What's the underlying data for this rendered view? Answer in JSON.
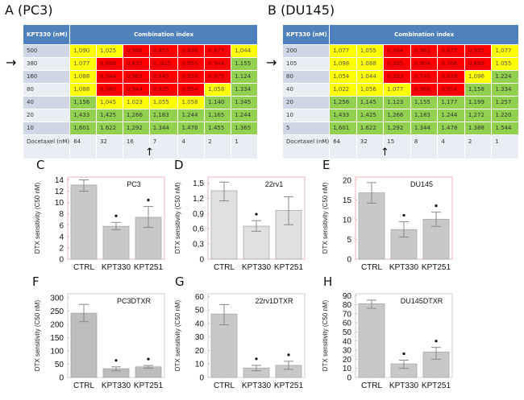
{
  "panels": {
    "A": {
      "label": "A (PC3)"
    },
    "B": {
      "label": "B (DU145)"
    },
    "C": {
      "label": "C"
    },
    "D": {
      "label": "D"
    },
    "E": {
      "label": "E"
    },
    "F": {
      "label": "F"
    },
    "G": {
      "label": "G"
    },
    "H": {
      "label": "H"
    }
  },
  "tables": {
    "A": {
      "row_header": "KPT330 (nM)",
      "col_header": "Combination index",
      "footer_label": "Docetaxel (nM)",
      "columns": [
        "64",
        "32",
        "16",
        "7",
        "4",
        "2",
        "1"
      ],
      "rows": [
        {
          "label": "500",
          "values": [
            "1,090",
            "1,025",
            "0.968",
            "0.855",
            "0.836",
            "0.877",
            "1,044"
          ],
          "colors": [
            "y",
            "y",
            "r",
            "r",
            "r",
            "r",
            "y"
          ]
        },
        {
          "label": "380",
          "values": [
            "1.077",
            "0.866",
            "0.832",
            "0,.925",
            "0.955",
            "0.944",
            "1.155"
          ],
          "colors": [
            "y",
            "r",
            "r",
            "r",
            "r",
            "r",
            "g"
          ]
        },
        {
          "label": "160",
          "values": [
            "1.088",
            "0,944",
            "0.962",
            "0.945",
            "0.928",
            "0.975",
            "1.124"
          ],
          "colors": [
            "y",
            "r",
            "r",
            "r",
            "r",
            "r",
            "g"
          ]
        },
        {
          "label": "80",
          "values": [
            "1,088",
            "0.980",
            "0.944",
            "0.935",
            "0.954",
            "1,058",
            "1.334"
          ],
          "colors": [
            "y",
            "r",
            "r",
            "r",
            "r",
            "y",
            "g"
          ]
        },
        {
          "label": "40",
          "values": [
            "1,156",
            "1,045",
            "1.023",
            "1,055",
            "1.058",
            "1.140",
            "1.345"
          ],
          "colors": [
            "g",
            "y",
            "y",
            "y",
            "y",
            "g",
            "g"
          ]
        },
        {
          "label": "20",
          "values": [
            "1,433",
            "1,425",
            "1,266",
            "1,183",
            "1.244",
            "1,165",
            "1.244"
          ],
          "colors": [
            "g",
            "g",
            "g",
            "g",
            "g",
            "g",
            "g"
          ]
        },
        {
          "label": "10",
          "values": [
            "1,601",
            "1.622",
            "1,292",
            "1.344",
            "1.478",
            "1.455",
            "1.365"
          ],
          "colors": [
            "g",
            "g",
            "g",
            "g",
            "g",
            "g",
            "g"
          ]
        }
      ],
      "highlight_row": "380",
      "highlight_column": "7"
    },
    "B": {
      "row_header": "KPT330 (nM)",
      "col_header": "Combination index",
      "footer_label": "Docetaxel (nM)",
      "columns": [
        "64",
        "32",
        "15",
        "8",
        "4",
        "2",
        "1"
      ],
      "rows": [
        {
          "label": "200",
          "values": [
            "1,077",
            "1,055",
            "0,844",
            "0.983",
            "0.877",
            "0.955",
            "1,077"
          ],
          "colors": [
            "y",
            "y",
            "r",
            "r",
            "r",
            "r",
            "y"
          ]
        },
        {
          "label": "105",
          "values": [
            "1,098",
            "1.088",
            "0.935",
            "0.804",
            "0.766",
            "0.889",
            "1.055"
          ],
          "colors": [
            "y",
            "y",
            "r",
            "r",
            "r",
            "r",
            "y"
          ]
        },
        {
          "label": "80",
          "values": [
            "1,054",
            "1.044",
            "0,933",
            "0.745",
            "0.828",
            "1,096",
            "1.224"
          ],
          "colors": [
            "y",
            "y",
            "r",
            "r",
            "r",
            "y",
            "g"
          ]
        },
        {
          "label": "40",
          "values": [
            "1,022",
            "1,056",
            "1.077",
            "0.988",
            "0.954",
            "1,158",
            "1.334"
          ],
          "colors": [
            "y",
            "y",
            "y",
            "r",
            "r",
            "g",
            "g"
          ]
        },
        {
          "label": "20",
          "values": [
            "1,256",
            "1,145",
            "1.123",
            "1,155",
            "1,177",
            "1.199",
            "1.257"
          ],
          "colors": [
            "g",
            "g",
            "g",
            "g",
            "g",
            "g",
            "g"
          ]
        },
        {
          "label": "10",
          "values": [
            "1,433",
            "1,425",
            "1,266",
            "1,183",
            "1.244",
            "1,272",
            "1.220"
          ],
          "colors": [
            "g",
            "g",
            "g",
            "g",
            "g",
            "g",
            "g"
          ]
        },
        {
          "label": "5",
          "values": [
            "1,601",
            "1.622",
            "1,292",
            "1.344",
            "1.478",
            "1.388",
            "1.544"
          ],
          "colors": [
            "g",
            "g",
            "g",
            "g",
            "g",
            "g",
            "g"
          ]
        }
      ],
      "highlight_row": "105",
      "highlight_column": "15"
    }
  },
  "colors": {
    "red": "#ff0000",
    "yellow": "#ffff00",
    "green": "#92d050",
    "header": "#4f81bd"
  },
  "chart_data": [
    {
      "id": "C",
      "type": "bar",
      "title": "PC3",
      "ylabel": "DTX sensitivity (C50 nM)",
      "xlabel": "",
      "categories": [
        "CTRL",
        "KPT330",
        "KPT251"
      ],
      "values": [
        13.1,
        5.8,
        7.4
      ],
      "errors_low": [
        12.0,
        5.2,
        5.6
      ],
      "errors_high": [
        14.0,
        6.5,
        9.3
      ],
      "significant": [
        false,
        true,
        true
      ],
      "ylim": [
        0,
        14.5
      ],
      "yticks": [
        "0",
        "2",
        "4",
        "6",
        "8",
        "10",
        "12",
        "14"
      ],
      "ytick_values": [
        0,
        2,
        4,
        6,
        8,
        10,
        12,
        14
      ],
      "bar_color": "#c8c8c8",
      "frame_color": "#e8b4b4"
    },
    {
      "id": "D",
      "type": "bar",
      "title": "22rv1",
      "ylabel": "DTX sensitivity (C50 nM)",
      "xlabel": "",
      "categories": [
        "CTRL",
        "KPT330",
        "KPT251"
      ],
      "values": [
        1.35,
        0.65,
        0.96
      ],
      "errors_low": [
        1.15,
        0.55,
        0.68
      ],
      "errors_high": [
        1.52,
        0.76,
        1.23
      ],
      "significant": [
        false,
        true,
        false
      ],
      "ylim": [
        0,
        1.62
      ],
      "yticks": [
        "0",
        "0,3",
        "0,6",
        "0,9",
        "1,2",
        "1,5"
      ],
      "ytick_values": [
        0,
        0.3,
        0.6,
        0.9,
        1.2,
        1.5
      ],
      "bar_color": "#e0e0e0",
      "frame_color": "#e8b4b4"
    },
    {
      "id": "E",
      "type": "bar",
      "title": "DU145",
      "ylabel": "DTX sensitivity (C50 nM)",
      "xlabel": "",
      "categories": [
        "CTRL",
        "KPT330",
        "KPT251"
      ],
      "values": [
        16.8,
        7.5,
        10.1
      ],
      "errors_low": [
        14.2,
        5.6,
        8.3
      ],
      "errors_high": [
        19.4,
        9.5,
        11.9
      ],
      "significant": [
        false,
        true,
        true
      ],
      "ylim": [
        0,
        20.8
      ],
      "yticks": [
        "0",
        "5",
        "10",
        "15",
        "20"
      ],
      "ytick_values": [
        0,
        5,
        10,
        15,
        20
      ],
      "bar_color": "#c8c8c8",
      "frame_color": "#e8b4b4"
    },
    {
      "id": "F",
      "type": "bar",
      "title": "PC3DTXR",
      "ylabel": "DTX sensitivity (C50 nM)",
      "xlabel": "",
      "categories": [
        "CTRL",
        "KPT330",
        "KPT251"
      ],
      "values": [
        242,
        33,
        40
      ],
      "errors_low": [
        210,
        25,
        35
      ],
      "errors_high": [
        275,
        40,
        45
      ],
      "significant": [
        false,
        true,
        true
      ],
      "ylim": [
        0,
        315
      ],
      "yticks": [
        "0",
        "50",
        "100",
        "150",
        "200",
        "250",
        "300"
      ],
      "ytick_values": [
        0,
        50,
        100,
        150,
        200,
        250,
        300
      ],
      "bar_color": "#bdbdbd",
      "frame_color": "#d0d0d0"
    },
    {
      "id": "G",
      "type": "bar",
      "title": "22rv1DTXR",
      "ylabel": "DTX sensitivity (C50 nM)",
      "xlabel": "",
      "categories": [
        "CTRL",
        "KPT330",
        "KPT251"
      ],
      "values": [
        47,
        7,
        9
      ],
      "errors_low": [
        39,
        5,
        6
      ],
      "errors_high": [
        54,
        9,
        12
      ],
      "significant": [
        false,
        true,
        true
      ],
      "ylim": [
        0,
        62
      ],
      "yticks": [
        "0",
        "10",
        "20",
        "30",
        "40",
        "50",
        "60"
      ],
      "ytick_values": [
        0,
        10,
        20,
        30,
        40,
        50,
        60
      ],
      "bar_color": "#c8c8c8",
      "frame_color": "#d0d0d0"
    },
    {
      "id": "H",
      "type": "bar",
      "title": "DU145DTXR",
      "ylabel": "DTX sensitivity (C50 nM)",
      "xlabel": "",
      "categories": [
        "CTRL",
        "KPT330",
        "KPT251"
      ],
      "values": [
        81,
        15,
        28
      ],
      "errors_low": [
        76,
        10,
        20
      ],
      "errors_high": [
        85,
        19,
        33
      ],
      "significant": [
        false,
        true,
        true
      ],
      "ylim": [
        0,
        92
      ],
      "yticks": [
        "0",
        "10",
        "20",
        "30",
        "40",
        "50",
        "60",
        "70",
        "80",
        "90"
      ],
      "ytick_values": [
        0,
        10,
        20,
        30,
        40,
        50,
        60,
        70,
        80,
        90
      ],
      "bar_color": "#c8c8c8",
      "frame_color": "#d0d0d0"
    }
  ]
}
